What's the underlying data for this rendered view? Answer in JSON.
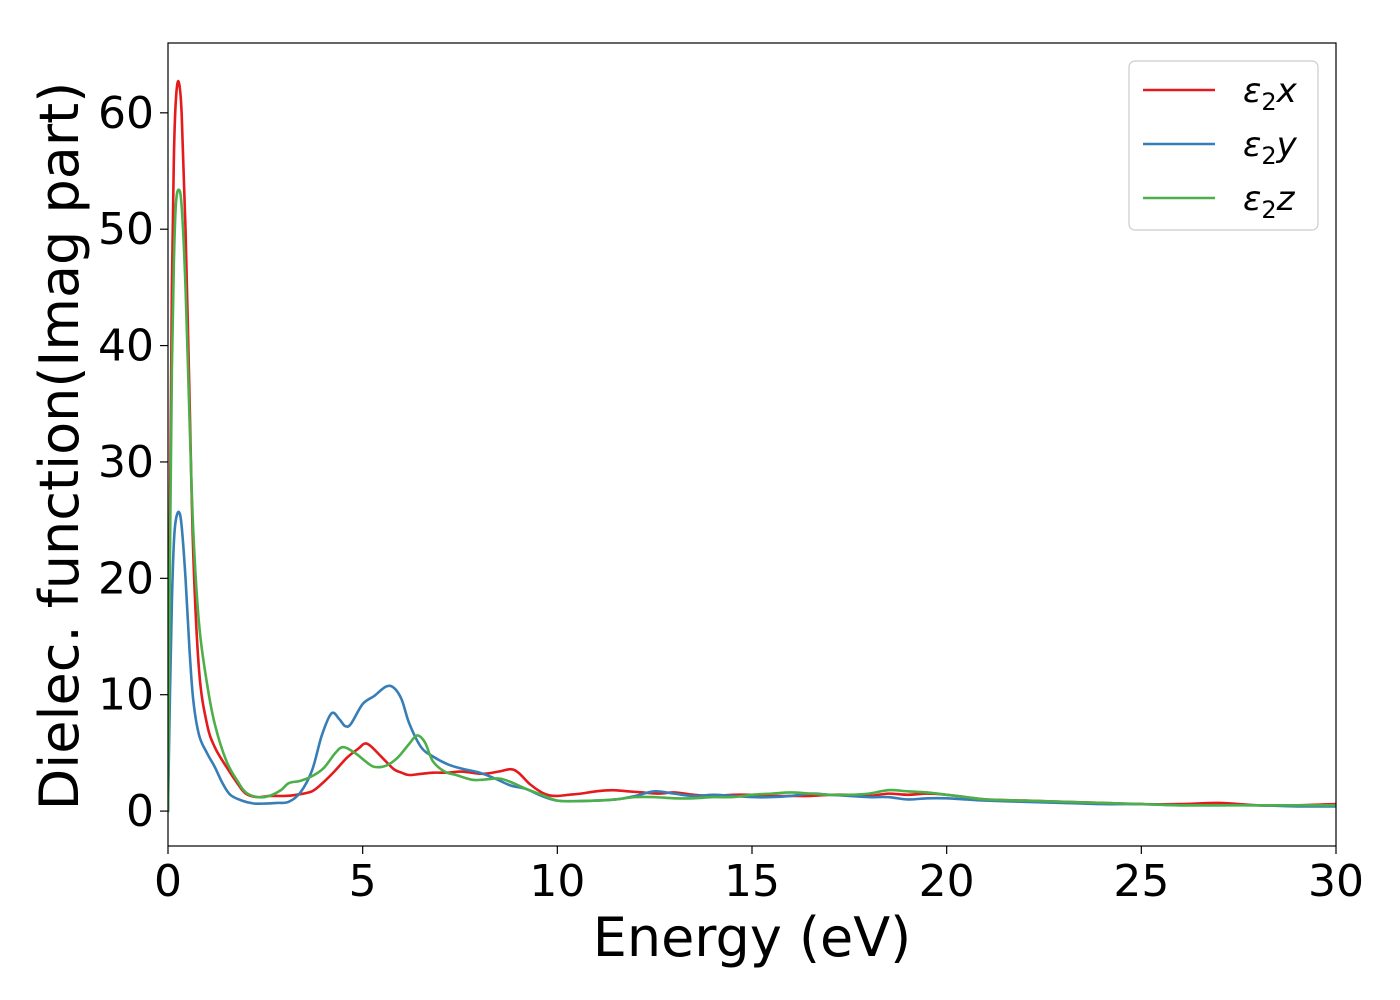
{
  "chart_data": {
    "type": "line",
    "title": "",
    "xlabel": "Energy (eV)",
    "ylabel": "Dielec. function(Imag part)",
    "xlim": [
      0,
      30
    ],
    "ylim": [
      -3,
      66
    ],
    "xticks": [
      0,
      5,
      10,
      15,
      20,
      25,
      30
    ],
    "yticks": [
      0,
      10,
      20,
      30,
      40,
      50,
      60
    ],
    "grid": false,
    "legend_position": "top-right",
    "series": [
      {
        "name_main": "ε",
        "name_sub": "2",
        "name_axis": "x",
        "color": "#e41a1c",
        "points": [
          [
            0,
            0
          ],
          [
            0.05,
            25
          ],
          [
            0.1,
            45
          ],
          [
            0.15,
            56
          ],
          [
            0.2,
            61
          ],
          [
            0.27,
            62.7
          ],
          [
            0.35,
            60
          ],
          [
            0.45,
            50
          ],
          [
            0.55,
            36
          ],
          [
            0.65,
            22
          ],
          [
            0.8,
            12
          ],
          [
            1.0,
            7.5
          ],
          [
            1.2,
            5.5
          ],
          [
            1.5,
            3.8
          ],
          [
            1.8,
            2.3
          ],
          [
            2.0,
            1.5
          ],
          [
            2.3,
            1.2
          ],
          [
            2.6,
            1.3
          ],
          [
            3.0,
            1.3
          ],
          [
            3.3,
            1.4
          ],
          [
            3.7,
            1.7
          ],
          [
            4.0,
            2.5
          ],
          [
            4.3,
            3.5
          ],
          [
            4.6,
            4.6
          ],
          [
            4.9,
            5.4
          ],
          [
            5.05,
            5.8
          ],
          [
            5.2,
            5.6
          ],
          [
            5.5,
            4.6
          ],
          [
            5.8,
            3.6
          ],
          [
            6.0,
            3.3
          ],
          [
            6.2,
            3.1
          ],
          [
            6.5,
            3.2
          ],
          [
            6.8,
            3.3
          ],
          [
            7.2,
            3.3
          ],
          [
            7.5,
            3.4
          ],
          [
            7.8,
            3.3
          ],
          [
            8.1,
            3.2
          ],
          [
            8.5,
            3.4
          ],
          [
            8.8,
            3.6
          ],
          [
            9.0,
            3.3
          ],
          [
            9.3,
            2.3
          ],
          [
            9.6,
            1.6
          ],
          [
            9.8,
            1.35
          ],
          [
            10.0,
            1.3
          ],
          [
            10.3,
            1.4
          ],
          [
            10.6,
            1.5
          ],
          [
            11.0,
            1.7
          ],
          [
            11.4,
            1.8
          ],
          [
            11.8,
            1.7
          ],
          [
            12.2,
            1.6
          ],
          [
            12.6,
            1.5
          ],
          [
            13.0,
            1.6
          ],
          [
            13.5,
            1.4
          ],
          [
            14.0,
            1.3
          ],
          [
            14.5,
            1.4
          ],
          [
            15.0,
            1.4
          ],
          [
            15.5,
            1.3
          ],
          [
            16.0,
            1.3
          ],
          [
            16.5,
            1.3
          ],
          [
            17.0,
            1.4
          ],
          [
            17.5,
            1.4
          ],
          [
            18.0,
            1.3
          ],
          [
            18.5,
            1.5
          ],
          [
            19.0,
            1.4
          ],
          [
            19.5,
            1.5
          ],
          [
            20.0,
            1.4
          ],
          [
            20.5,
            1.2
          ],
          [
            21.0,
            1.0
          ],
          [
            22.0,
            0.9
          ],
          [
            23.0,
            0.8
          ],
          [
            24.0,
            0.7
          ],
          [
            25.0,
            0.6
          ],
          [
            26.0,
            0.6
          ],
          [
            27.0,
            0.7
          ],
          [
            28.0,
            0.5
          ],
          [
            29.0,
            0.5
          ],
          [
            30.0,
            0.6
          ]
        ]
      },
      {
        "name_main": "ε",
        "name_sub": "2",
        "name_axis": "y",
        "color": "#377eb8",
        "points": [
          [
            0,
            0
          ],
          [
            0.05,
            10
          ],
          [
            0.1,
            18
          ],
          [
            0.15,
            23
          ],
          [
            0.2,
            25
          ],
          [
            0.28,
            25.7
          ],
          [
            0.35,
            24.5
          ],
          [
            0.45,
            20
          ],
          [
            0.55,
            14
          ],
          [
            0.65,
            9.5
          ],
          [
            0.8,
            6.5
          ],
          [
            1.0,
            5
          ],
          [
            1.2,
            3.8
          ],
          [
            1.4,
            2.4
          ],
          [
            1.6,
            1.4
          ],
          [
            1.9,
            0.9
          ],
          [
            2.2,
            0.65
          ],
          [
            2.5,
            0.65
          ],
          [
            2.8,
            0.7
          ],
          [
            3.1,
            0.8
          ],
          [
            3.4,
            1.6
          ],
          [
            3.7,
            3.5
          ],
          [
            3.95,
            6.5
          ],
          [
            4.2,
            8.4
          ],
          [
            4.4,
            7.9
          ],
          [
            4.55,
            7.3
          ],
          [
            4.7,
            7.5
          ],
          [
            5.0,
            9.2
          ],
          [
            5.3,
            9.9
          ],
          [
            5.6,
            10.7
          ],
          [
            5.8,
            10.6
          ],
          [
            6.0,
            9.6
          ],
          [
            6.2,
            7.5
          ],
          [
            6.5,
            5.5
          ],
          [
            6.8,
            4.7
          ],
          [
            7.2,
            4.0
          ],
          [
            7.6,
            3.6
          ],
          [
            8.0,
            3.3
          ],
          [
            8.4,
            2.8
          ],
          [
            8.8,
            2.2
          ],
          [
            9.2,
            1.9
          ],
          [
            9.6,
            1.3
          ],
          [
            10.0,
            0.9
          ],
          [
            10.5,
            0.85
          ],
          [
            11.0,
            0.9
          ],
          [
            11.5,
            1.0
          ],
          [
            12.0,
            1.3
          ],
          [
            12.5,
            1.7
          ],
          [
            13.0,
            1.5
          ],
          [
            13.5,
            1.3
          ],
          [
            14.0,
            1.4
          ],
          [
            14.5,
            1.3
          ],
          [
            15.0,
            1.2
          ],
          [
            15.5,
            1.2
          ],
          [
            16.0,
            1.3
          ],
          [
            16.5,
            1.5
          ],
          [
            17.0,
            1.4
          ],
          [
            17.5,
            1.3
          ],
          [
            18.0,
            1.2
          ],
          [
            18.5,
            1.2
          ],
          [
            19.0,
            1.0
          ],
          [
            19.5,
            1.1
          ],
          [
            20.0,
            1.1
          ],
          [
            20.5,
            1.0
          ],
          [
            21.0,
            0.9
          ],
          [
            22.0,
            0.8
          ],
          [
            23.0,
            0.7
          ],
          [
            24.0,
            0.6
          ],
          [
            25.0,
            0.6
          ],
          [
            26.0,
            0.5
          ],
          [
            27.0,
            0.5
          ],
          [
            28.0,
            0.5
          ],
          [
            29.0,
            0.4
          ],
          [
            30.0,
            0.4
          ]
        ]
      },
      {
        "name_main": "ε",
        "name_sub": "2",
        "name_axis": "z",
        "color": "#4daf4a",
        "points": [
          [
            0,
            0
          ],
          [
            0.05,
            22
          ],
          [
            0.1,
            38
          ],
          [
            0.15,
            47
          ],
          [
            0.2,
            52
          ],
          [
            0.27,
            53.4
          ],
          [
            0.35,
            52
          ],
          [
            0.45,
            45
          ],
          [
            0.55,
            34
          ],
          [
            0.65,
            24
          ],
          [
            0.8,
            16
          ],
          [
            1.0,
            11
          ],
          [
            1.2,
            7.5
          ],
          [
            1.5,
            4.3
          ],
          [
            1.8,
            2.5
          ],
          [
            2.0,
            1.6
          ],
          [
            2.3,
            1.2
          ],
          [
            2.6,
            1.3
          ],
          [
            2.9,
            1.8
          ],
          [
            3.1,
            2.4
          ],
          [
            3.4,
            2.6
          ],
          [
            3.7,
            3.0
          ],
          [
            4.0,
            3.7
          ],
          [
            4.3,
            5.0
          ],
          [
            4.5,
            5.5
          ],
          [
            4.8,
            5.0
          ],
          [
            5.1,
            4.2
          ],
          [
            5.3,
            3.8
          ],
          [
            5.6,
            3.9
          ],
          [
            5.9,
            4.6
          ],
          [
            6.2,
            5.8
          ],
          [
            6.4,
            6.5
          ],
          [
            6.6,
            5.9
          ],
          [
            6.8,
            4.3
          ],
          [
            7.1,
            3.4
          ],
          [
            7.4,
            3.1
          ],
          [
            7.8,
            2.7
          ],
          [
            8.1,
            2.7
          ],
          [
            8.5,
            2.8
          ],
          [
            8.8,
            2.5
          ],
          [
            9.2,
            1.9
          ],
          [
            9.6,
            1.4
          ],
          [
            10.0,
            0.9
          ],
          [
            10.5,
            0.85
          ],
          [
            11.0,
            0.9
          ],
          [
            11.5,
            1.0
          ],
          [
            12.0,
            1.2
          ],
          [
            12.5,
            1.2
          ],
          [
            13.0,
            1.1
          ],
          [
            13.5,
            1.1
          ],
          [
            14.0,
            1.2
          ],
          [
            14.5,
            1.2
          ],
          [
            15.0,
            1.4
          ],
          [
            15.5,
            1.5
          ],
          [
            16.0,
            1.6
          ],
          [
            16.5,
            1.5
          ],
          [
            17.0,
            1.4
          ],
          [
            17.5,
            1.4
          ],
          [
            18.0,
            1.5
          ],
          [
            18.5,
            1.8
          ],
          [
            19.0,
            1.7
          ],
          [
            19.5,
            1.6
          ],
          [
            20.0,
            1.4
          ],
          [
            20.5,
            1.2
          ],
          [
            21.0,
            1.0
          ],
          [
            22.0,
            0.9
          ],
          [
            23.0,
            0.8
          ],
          [
            24.0,
            0.7
          ],
          [
            25.0,
            0.6
          ],
          [
            26.0,
            0.5
          ],
          [
            27.0,
            0.5
          ],
          [
            28.0,
            0.5
          ],
          [
            29.0,
            0.5
          ],
          [
            30.0,
            0.5
          ]
        ]
      }
    ]
  }
}
